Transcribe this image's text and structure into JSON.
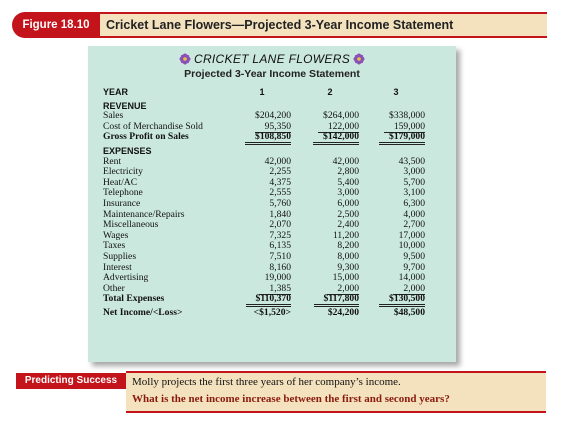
{
  "figure": {
    "label": "Figure 18.10",
    "title": "Cricket Lane Flowers—Projected 3-Year Income Statement"
  },
  "statement": {
    "company": "CRICKET LANE FLOWERS",
    "subtitle": "Projected 3-Year Income Statement",
    "year_label": "YEAR",
    "years": [
      "1",
      "2",
      "3"
    ],
    "revenue_label": "REVENUE",
    "revenue": [
      {
        "label": "Sales",
        "values": [
          "$204,200",
          "$264,000",
          "$338,000"
        ]
      },
      {
        "label": "Cost of Merchandise Sold",
        "values": [
          "95,350",
          "122,000",
          "159,000"
        ]
      }
    ],
    "gross_profit": {
      "label": "Gross Profit on Sales",
      "values": [
        "$108,850",
        "$142,000",
        "$179,000"
      ]
    },
    "expenses_label": "EXPENSES",
    "expenses": [
      {
        "label": "Rent",
        "values": [
          "42,000",
          "42,000",
          "43,500"
        ]
      },
      {
        "label": "Electricity",
        "values": [
          "2,255",
          "2,800",
          "3,000"
        ]
      },
      {
        "label": "Heat/AC",
        "values": [
          "4,375",
          "5,400",
          "5,700"
        ]
      },
      {
        "label": "Telephone",
        "values": [
          "2,555",
          "3,000",
          "3,100"
        ]
      },
      {
        "label": "Insurance",
        "values": [
          "5,760",
          "6,000",
          "6,300"
        ]
      },
      {
        "label": "Maintenance/Repairs",
        "values": [
          "1,840",
          "2,500",
          "4,000"
        ]
      },
      {
        "label": "Miscellaneous",
        "values": [
          "2,070",
          "2,400",
          "2,700"
        ]
      },
      {
        "label": "Wages",
        "values": [
          "7,325",
          "11,200",
          "17,000"
        ]
      },
      {
        "label": "Taxes",
        "values": [
          "6,135",
          "8,200",
          "10,000"
        ]
      },
      {
        "label": "Supplies",
        "values": [
          "7,510",
          "8,000",
          "9,500"
        ]
      },
      {
        "label": "Interest",
        "values": [
          "8,160",
          "9,300",
          "9,700"
        ]
      },
      {
        "label": "Advertising",
        "values": [
          "19,000",
          "15,000",
          "14,000"
        ]
      },
      {
        "label": "Other",
        "values": [
          "1,385",
          "2,000",
          "2,000"
        ]
      }
    ],
    "total_expenses": {
      "label": "Total Expenses",
      "values": [
        "$110,370",
        "$117,800",
        "$130,500"
      ]
    },
    "net_income": {
      "label": "Net Income/<Loss>",
      "values": [
        "<$1,520>",
        "$24,200",
        "$48,500"
      ]
    }
  },
  "predicting": {
    "label": "Predicting Success",
    "text": "Molly projects the first three years of her company’s income.",
    "question": "What is the net income increase between the first and second years?"
  },
  "colors": {
    "accent_red": "#c3141b",
    "panel_green": "#cbe8de",
    "title_tan": "#f3e2bd",
    "question_brown": "#8a1a10",
    "flower_purple": "#8a4fb8"
  },
  "icons": [
    "flower-icon"
  ]
}
